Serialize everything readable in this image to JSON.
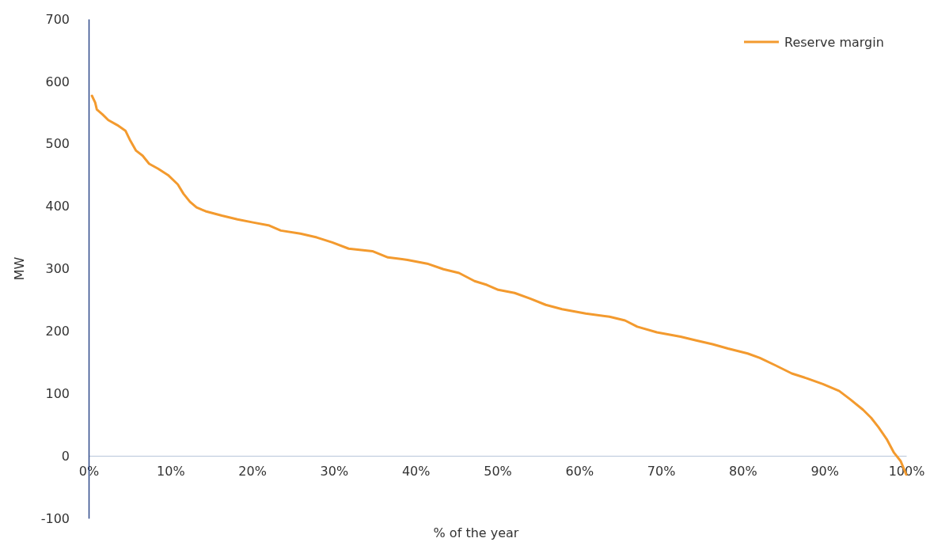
{
  "chart_data": {
    "type": "line",
    "xlabel": "% of the year",
    "ylabel": "MW",
    "legend": "top right",
    "marker": "none",
    "line_style": "solid",
    "grid": false,
    "xlim": [
      0,
      100
    ],
    "ylim": [
      -100,
      700
    ],
    "xticks": [
      {
        "value": 0,
        "label": "0%"
      },
      {
        "value": 10,
        "label": "10%"
      },
      {
        "value": 20,
        "label": "20%"
      },
      {
        "value": 30,
        "label": "30%"
      },
      {
        "value": 40,
        "label": "40%"
      },
      {
        "value": 50,
        "label": "50%"
      },
      {
        "value": 60,
        "label": "60%"
      },
      {
        "value": 70,
        "label": "70%"
      },
      {
        "value": 80,
        "label": "80%"
      },
      {
        "value": 90,
        "label": "90%"
      },
      {
        "value": 100,
        "label": "100%"
      }
    ],
    "yticks": [
      -100,
      0,
      100,
      200,
      300,
      400,
      500,
      600,
      700
    ],
    "x": [
      0.4,
      0.8,
      1.0,
      1.7,
      2.4,
      3.5,
      4.5,
      5.1,
      5.8,
      6.6,
      7.4,
      8.5,
      9.7,
      10.9,
      11.6,
      12.4,
      13.2,
      14.3,
      16.3,
      18.2,
      20.1,
      22.1,
      23.5,
      25.9,
      27.9,
      29.8,
      31.8,
      34.7,
      36.6,
      39.0,
      41.4,
      43.4,
      45.3,
      47.2,
      48.7,
      50.1,
      52.1,
      54.0,
      55.9,
      57.9,
      60.8,
      63.7,
      65.6,
      67.1,
      69.5,
      72.4,
      74.3,
      76.3,
      78.2,
      80.6,
      82.1,
      84.0,
      86.0,
      87.9,
      89.8,
      91.8,
      93.2,
      94.7,
      95.7,
      96.6,
      97.6,
      98.5,
      99.3,
      100
    ],
    "series": [
      {
        "name": "Reserve margin",
        "color": "#f39a2e",
        "values": [
          577,
          566,
          555,
          547,
          538,
          530,
          521,
          505,
          489,
          481,
          468,
          460,
          450,
          435,
          420,
          407,
          398,
          392,
          385,
          379,
          374,
          369,
          361,
          356,
          350,
          342,
          332,
          328,
          318,
          314,
          308,
          299,
          293,
          280,
          274,
          266,
          261,
          252,
          242,
          235,
          228,
          223,
          217,
          207,
          198,
          191,
          185,
          179,
          172,
          164,
          157,
          145,
          132,
          124,
          115,
          104,
          90,
          74,
          61,
          46,
          27,
          5,
          -8,
          -30
        ]
      }
    ]
  }
}
